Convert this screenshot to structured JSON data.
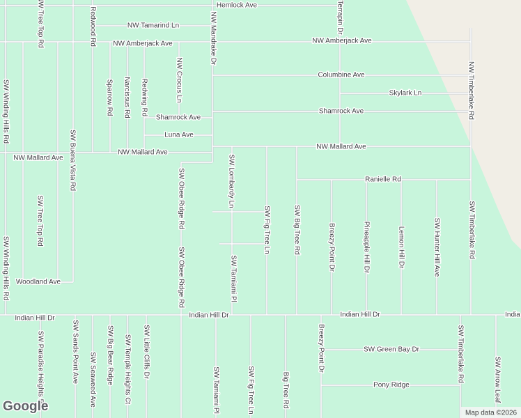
{
  "labels": [
    "Hemlock Ave",
    "NW Tamarind Ln",
    "NW Amberjack Ave",
    "NW Amberjack Ave",
    "Columbine Ave",
    "Skylark Ln",
    "Shamrock Ave",
    "Shamrock Ave",
    "Luna Ave",
    "NW Mallard Ave",
    "NW Mallard Ave",
    "NW Mallard Ave",
    "Ranielle Rd",
    "Woodland Ave",
    "Indian Hill Dr",
    "Indian Hill Dr",
    "Indian Hill Dr",
    "India",
    "SW Green Bay Dr",
    "Pony Ridge",
    "NW Tree Top Rd",
    "Redwood Rd",
    "NW Mandrake Dr",
    "Terrapin Dr",
    "NW Timberlake Rd",
    "NW Crocus Ln",
    "Sparrow Rd",
    "Narcissus Rd",
    "Redwing Rd",
    "SW Winding Hills Rd",
    "SW Buena Vista Rd",
    "SW Tree Top Rd",
    "SW Lombardy Ln",
    "SW Obee Ridge Rd",
    "SW Obee Ridge Rd",
    "SW Fig Tree Ln",
    "SW Big Tree Rd",
    "Breezy Point Dr",
    "Pineapple Hill Dr",
    "Lemon Hill Dr",
    "SW Hunter Hill Ave",
    "SW Timberlake Rd",
    "SW Tamiami Pl",
    "SW Winding Hills Rd",
    "SW Paradise Heights Rd",
    "SW Sands Point Ave",
    "SW Seaweed Ave",
    "SW Big Bear Ridge",
    "SW Temple Heights Ct",
    "SW Little Cliffs Dr",
    "SW Tamiami Pl",
    "SW Fig Tree Ln",
    "Big Tree Rd",
    "Breezy Point Dr",
    "SW Timberlake Rd",
    "SW Arrow Leaf"
  ],
  "attribution": "Map data ©2026",
  "logo": "Google"
}
